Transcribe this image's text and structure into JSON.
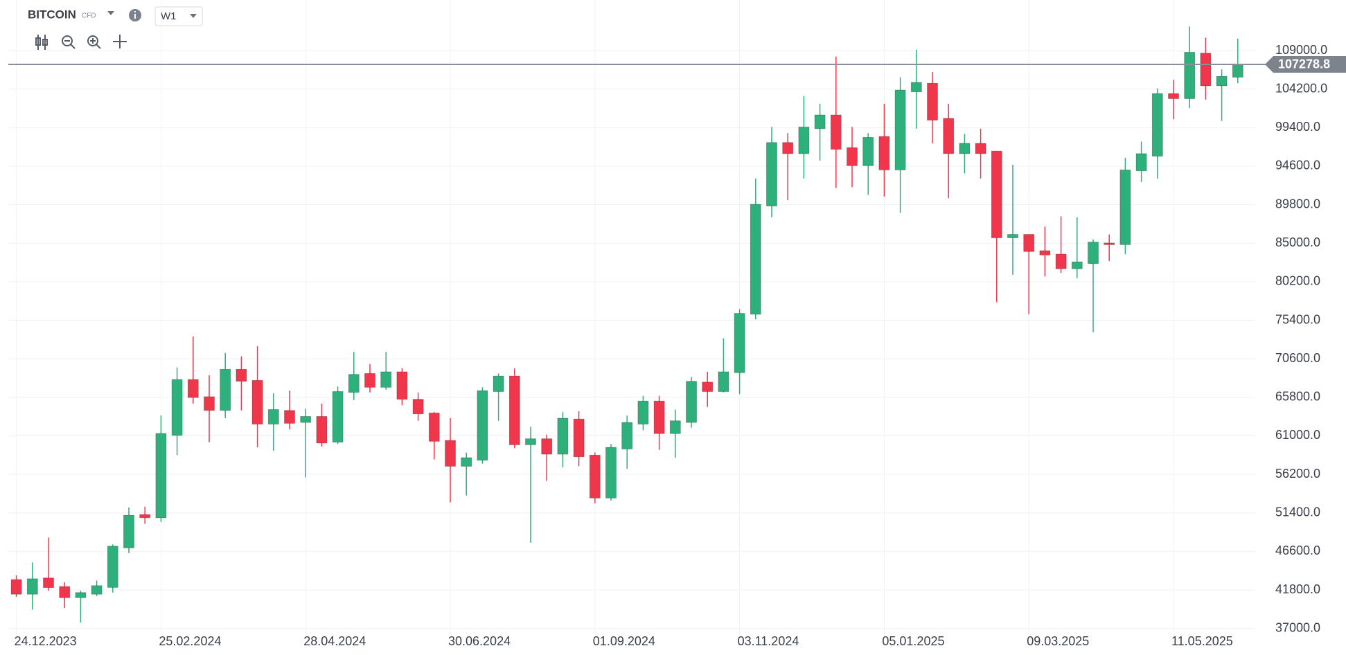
{
  "chart_data": {
    "type": "candlestick",
    "symbol": "BITCOIN",
    "instrument_type": "CFD",
    "timeframe": "W1",
    "up_color": "#2db07b",
    "down_color": "#f0364b",
    "categories": [
      "24.12.2023",
      null,
      null,
      null,
      null,
      null,
      null,
      null,
      null,
      "25.02.2024",
      null,
      null,
      null,
      null,
      null,
      null,
      null,
      null,
      "28.04.2024",
      null,
      null,
      null,
      null,
      null,
      null,
      null,
      null,
      "30.06.2024",
      null,
      null,
      null,
      null,
      null,
      null,
      null,
      null,
      "01.09.2024",
      null,
      null,
      null,
      null,
      null,
      null,
      null,
      null,
      "03.11.2024",
      null,
      null,
      null,
      null,
      null,
      null,
      null,
      null,
      "05.01.2025",
      null,
      null,
      null,
      null,
      null,
      null,
      null,
      null,
      "09.03.2025",
      null,
      null,
      null,
      null,
      null,
      null,
      null,
      null,
      "11.05.2025",
      null,
      null,
      null,
      null
    ],
    "open": [
      43100,
      41270,
      43300,
      42230,
      40840,
      41270,
      42120,
      47040,
      51200,
      50790,
      61060,
      68020,
      65880,
      64170,
      69300,
      67910,
      62460,
      64170,
      62670,
      63420,
      60210,
      66410,
      68770,
      67050,
      68980,
      65560,
      63850,
      60430,
      57210,
      57960,
      66520,
      68450,
      59890,
      60640,
      58710,
      63100,
      58600,
      53250,
      59360,
      62460,
      65340,
      61280,
      62670,
      67700,
      66520,
      68870,
      76150,
      89630,
      97550,
      96160,
      99270,
      100980,
      96910,
      94660,
      98300,
      94130,
      103860,
      104930,
      100550,
      96160,
      97440,
      96480,
      85670,
      86100,
      84070,
      83640,
      81820,
      82460,
      85030,
      84820,
      94020,
      95840,
      103650,
      103010,
      108680,
      104610,
      105680
    ],
    "high": [
      43620,
      45230,
      48330,
      42770,
      41700,
      42980,
      47480,
      52080,
      52180,
      63530,
      69520,
      73370,
      68550,
      71340,
      70910,
      72190,
      66310,
      66630,
      64380,
      65020,
      67160,
      71450,
      69950,
      71450,
      69410,
      66410,
      63960,
      63200,
      58920,
      67050,
      68770,
      69410,
      62130,
      61170,
      63960,
      64060,
      58920,
      60000,
      63530,
      65990,
      65990,
      64280,
      68340,
      68980,
      73150,
      76790,
      93060,
      99480,
      98730,
      103330,
      102370,
      108250,
      99480,
      98730,
      102370,
      105680,
      109110,
      106320,
      102370,
      98620,
      99270,
      96480,
      94770,
      86100,
      87070,
      88350,
      88240,
      85460,
      86100,
      95630,
      97660,
      104290,
      105360,
      112000,
      110610,
      106650,
      110500
    ],
    "low": [
      40950,
      39340,
      41700,
      39560,
      37740,
      41050,
      41480,
      46400,
      50040,
      50260,
      58600,
      65020,
      60210,
      63200,
      64170,
      59570,
      59140,
      61810,
      55820,
      59670,
      59990,
      65450,
      66410,
      66740,
      64810,
      62880,
      58070,
      52720,
      53570,
      57530,
      62880,
      59460,
      47690,
      55390,
      57100,
      57210,
      52610,
      52930,
      56890,
      61700,
      59250,
      58280,
      62030,
      64600,
      66410,
      66200,
      75510,
      88240,
      90380,
      93060,
      95300,
      91880,
      91990,
      91020,
      90810,
      88780,
      99260,
      97440,
      90600,
      93700,
      93060,
      77650,
      81070,
      76150,
      80860,
      81290,
      80650,
      73900,
      82790,
      83640,
      92630,
      93060,
      100440,
      101830,
      102900,
      100230,
      104930
    ],
    "close": [
      41270,
      43200,
      42100,
      40840,
      41480,
      42340,
      47260,
      51110,
      50800,
      61300,
      68020,
      65770,
      64170,
      69300,
      67800,
      62460,
      64280,
      62560,
      63420,
      60100,
      66520,
      68660,
      67050,
      68980,
      65560,
      63740,
      60320,
      57210,
      58280,
      66630,
      68450,
      59890,
      60640,
      58710,
      63200,
      58390,
      53250,
      59570,
      62670,
      65340,
      61280,
      62880,
      67800,
      66520,
      68980,
      76260,
      89850,
      97550,
      96160,
      99480,
      100980,
      96700,
      94660,
      98190,
      94130,
      104080,
      105040,
      100330,
      96160,
      97440,
      96160,
      85670,
      86100,
      83960,
      83530,
      81820,
      82680,
      85140,
      84820,
      94130,
      96160,
      103650,
      103010,
      108790,
      104610,
      105790,
      107278.8
    ],
    "last_price": 107278.8,
    "ylim": [
      36200,
      115300
    ],
    "yticks": [
      {
        "value": 109000,
        "label": "109000.0"
      },
      {
        "value": 104200,
        "label": "104200.0"
      },
      {
        "value": 99400,
        "label": "99400.0"
      },
      {
        "value": 94600,
        "label": "94600.0"
      },
      {
        "value": 89800,
        "label": "89800.0"
      },
      {
        "value": 85000,
        "label": "85000.0"
      },
      {
        "value": 80200,
        "label": "80200.0"
      },
      {
        "value": 75400,
        "label": "75400.0"
      },
      {
        "value": 70600,
        "label": "70600.0"
      },
      {
        "value": 65800,
        "label": "65800.0"
      },
      {
        "value": 61000,
        "label": "61000.0"
      },
      {
        "value": 56200,
        "label": "56200.0"
      },
      {
        "value": 51400,
        "label": "51400.0"
      },
      {
        "value": 46600,
        "label": "46600.0"
      },
      {
        "value": 41800,
        "label": "41800.0"
      },
      {
        "value": 37000,
        "label": "37000.0"
      }
    ],
    "grid": true
  }
}
